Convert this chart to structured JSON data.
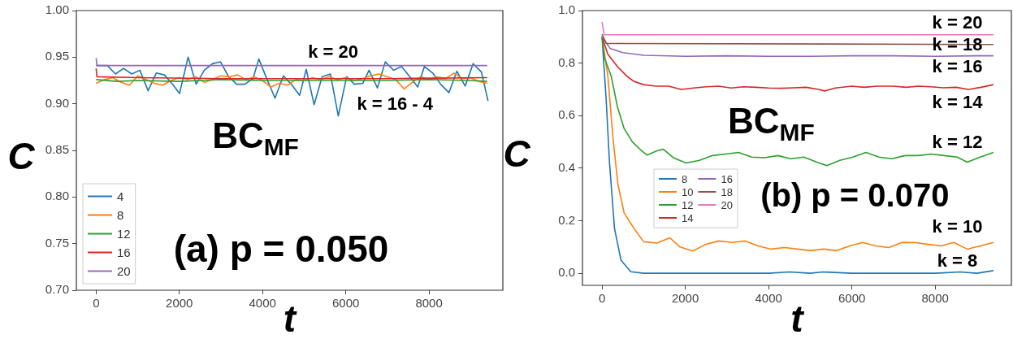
{
  "chart_data": [
    {
      "type": "line",
      "xlabel": "t",
      "ylabel": "C",
      "xlim": [
        -475,
        9775
      ],
      "xticks": [
        0,
        2000,
        4000,
        6000,
        8000
      ],
      "ylim": [
        0.7,
        1.0
      ],
      "yticks": [
        {
          "value": 0.7,
          "label": "0.70"
        },
        0.75,
        {
          "value": 0.8,
          "label": "0.80"
        },
        0.85,
        {
          "value": 0.9,
          "label": "0.90"
        },
        0.95,
        {
          "value": 1.0,
          "label": "1.00"
        }
      ],
      "grid": false,
      "legend": "bottom left",
      "annotations": [
        "k = 20",
        "k = 16 - 4",
        "BC$_{MF}$",
        "(a) p = 0.050"
      ],
      "series": [
        {
          "name": "4",
          "color": "#1f77b4",
          "x": [
            0,
            270,
            465,
            660,
            855,
            1050,
            1250,
            1445,
            1640,
            1835,
            2005,
            2210,
            2405,
            2600,
            2795,
            2990,
            3185,
            3380,
            3575,
            3770,
            3910,
            4110,
            4300,
            4500,
            4690,
            4890,
            5050,
            5240,
            5430,
            5630,
            5820,
            6020,
            6210,
            6410,
            6560,
            6760,
            6950,
            7150,
            7340,
            7540,
            7730,
            7890,
            8090,
            8280,
            8480,
            8670,
            8870,
            9060,
            9260,
            9420
          ],
          "values": [
            0.941,
            0.941,
            0.932,
            0.938,
            0.932,
            0.936,
            0.914,
            0.933,
            0.931,
            0.921,
            0.911,
            0.95,
            0.921,
            0.936,
            0.943,
            0.945,
            0.929,
            0.921,
            0.921,
            0.927,
            0.948,
            0.926,
            0.906,
            0.93,
            0.921,
            0.909,
            0.937,
            0.899,
            0.929,
            0.932,
            0.887,
            0.929,
            0.921,
            0.922,
            0.936,
            0.917,
            0.945,
            0.936,
            0.94,
            0.929,
            0.918,
            0.94,
            0.933,
            0.921,
            0.912,
            0.935,
            0.919,
            0.943,
            0.934,
            0.903
          ]
        },
        {
          "name": "8",
          "color": "#ff7f0e",
          "x": [
            0,
            200,
            400,
            600,
            800,
            1000,
            1200,
            1400,
            1600,
            1800,
            2000,
            2200,
            2400,
            2600,
            2800,
            3000,
            3200,
            3400,
            3600,
            3800,
            4000,
            4200,
            4400,
            4600,
            4800,
            5000,
            5200,
            5400,
            5600,
            5800,
            6000,
            6200,
            6400,
            6600,
            6800,
            7000,
            7200,
            7400,
            7600,
            7800,
            8000,
            8200,
            8400,
            8600,
            8800,
            9000,
            9200,
            9400
          ],
          "values": [
            0.922,
            0.926,
            0.928,
            0.923,
            0.92,
            0.93,
            0.926,
            0.922,
            0.92,
            0.925,
            0.928,
            0.926,
            0.929,
            0.923,
            0.926,
            0.93,
            0.929,
            0.931,
            0.926,
            0.929,
            0.925,
            0.918,
            0.922,
            0.92,
            0.926,
            0.925,
            0.928,
            0.926,
            0.929,
            0.926,
            0.928,
            0.925,
            0.927,
            0.93,
            0.932,
            0.929,
            0.926,
            0.916,
            0.923,
            0.929,
            0.926,
            0.929,
            0.927,
            0.933,
            0.927,
            0.928,
            0.924,
            0.922
          ]
        },
        {
          "name": "12",
          "color": "#2ca02c",
          "x": [
            0,
            500,
            1000,
            2000,
            3000,
            4000,
            5000,
            6000,
            7000,
            8000,
            9000,
            9400
          ],
          "values": [
            0.926,
            0.924,
            0.925,
            0.924,
            0.926,
            0.925,
            0.925,
            0.925,
            0.925,
            0.926,
            0.925,
            0.924
          ]
        },
        {
          "name": "16",
          "color": "#d62728",
          "x": [
            0,
            20,
            1000,
            3000,
            5000,
            7000,
            9400
          ],
          "values": [
            0.938,
            0.929,
            0.928,
            0.927,
            0.927,
            0.927,
            0.928
          ]
        },
        {
          "name": "20",
          "color": "#9467bd",
          "x": [
            0,
            20,
            9400
          ],
          "values": [
            0.949,
            0.941,
            0.941
          ]
        }
      ]
    },
    {
      "type": "line",
      "xlabel": "t",
      "ylabel": "C",
      "xlim": [
        -470,
        9830
      ],
      "xticks": [
        0,
        2000,
        4000,
        6000,
        8000
      ],
      "ylim": [
        -0.046,
        1.0
      ],
      "yticks": [
        {
          "value": 0,
          "label": "0.0"
        },
        0.2,
        0.4,
        0.6,
        0.8,
        {
          "value": 1.0,
          "label": "1.0"
        }
      ],
      "grid": false,
      "legend": "bottom left",
      "annotations": [
        "k = 20",
        "k = 18",
        "k = 16",
        "k = 14",
        "k = 12",
        "k = 10",
        "k = 8",
        "BC$_{MF}$",
        "(b) p = 0.070"
      ],
      "series": [
        {
          "name": "8",
          "color": "#1f77b4",
          "x": [
            0,
            100,
            180,
            300,
            455,
            690,
            1000,
            2000,
            3000,
            4000,
            4500,
            5000,
            5300,
            6000,
            7000,
            8000,
            8600,
            9000,
            9400
          ],
          "values": [
            0.9,
            0.66,
            0.42,
            0.17,
            0.05,
            0.006,
            0,
            0,
            0,
            0,
            0.005,
            0,
            0.005,
            0,
            0,
            0,
            0.005,
            0,
            0.01
          ]
        },
        {
          "name": "10",
          "color": "#ff7f0e",
          "x": [
            0,
            140,
            260,
            380,
            530,
            770,
            1000,
            1320,
            1630,
            1870,
            2180,
            2490,
            2810,
            3120,
            3440,
            3750,
            4060,
            4380,
            4690,
            5000,
            5320,
            5630,
            5950,
            6260,
            6570,
            6890,
            7200,
            7510,
            7830,
            8140,
            8450,
            8770,
            9080,
            9400
          ],
          "values": [
            0.9,
            0.75,
            0.52,
            0.34,
            0.23,
            0.17,
            0.12,
            0.115,
            0.135,
            0.1,
            0.085,
            0.11,
            0.123,
            0.117,
            0.123,
            0.104,
            0.092,
            0.098,
            0.092,
            0.086,
            0.092,
            0.086,
            0.104,
            0.117,
            0.104,
            0.098,
            0.117,
            0.117,
            0.11,
            0.104,
            0.117,
            0.092,
            0.104,
            0.117
          ]
        },
        {
          "name": "12",
          "color": "#2ca02c",
          "x": [
            0,
            60,
            220,
            376,
            533,
            730,
            925,
            1080,
            1320,
            1475,
            1710,
            2020,
            2340,
            2650,
            2965,
            3280,
            3590,
            3900,
            4220,
            4530,
            4850,
            5160,
            5400,
            5710,
            6020,
            6340,
            6650,
            6960,
            7280,
            7590,
            7900,
            8220,
            8530,
            8770,
            9080,
            9400
          ],
          "values": [
            0.9,
            0.82,
            0.75,
            0.63,
            0.55,
            0.5,
            0.47,
            0.45,
            0.466,
            0.472,
            0.44,
            0.42,
            0.43,
            0.448,
            0.454,
            0.46,
            0.442,
            0.44,
            0.448,
            0.436,
            0.442,
            0.423,
            0.41,
            0.43,
            0.442,
            0.46,
            0.442,
            0.436,
            0.448,
            0.448,
            0.454,
            0.448,
            0.442,
            0.423,
            0.442,
            0.46
          ]
        },
        {
          "name": "14",
          "color": "#d62728",
          "x": [
            0,
            140,
            380,
            610,
            770,
            1000,
            1300,
            1600,
            1900,
            2200,
            2500,
            2800,
            3100,
            3400,
            3700,
            4000,
            4300,
            4600,
            4900,
            5200,
            5350,
            5600,
            6000,
            6300,
            6600,
            7000,
            7300,
            7600,
            7900,
            8200,
            8500,
            8800,
            9100,
            9400
          ],
          "values": [
            0.9,
            0.834,
            0.785,
            0.748,
            0.73,
            0.718,
            0.712,
            0.712,
            0.7,
            0.705,
            0.71,
            0.712,
            0.705,
            0.71,
            0.708,
            0.705,
            0.704,
            0.706,
            0.708,
            0.7,
            0.694,
            0.705,
            0.712,
            0.708,
            0.712,
            0.712,
            0.708,
            0.712,
            0.71,
            0.706,
            0.708,
            0.7,
            0.708,
            0.718
          ]
        },
        {
          "name": "16",
          "color": "#9467bd",
          "x": [
            0,
            200,
            500,
            1000,
            2000,
            3000,
            4000,
            5000,
            6000,
            7000,
            8000,
            9000,
            9400
          ],
          "values": [
            0.9,
            0.855,
            0.84,
            0.83,
            0.826,
            0.828,
            0.826,
            0.826,
            0.828,
            0.828,
            0.826,
            0.828,
            0.828
          ]
        },
        {
          "name": "18",
          "color": "#8c564b",
          "x": [
            0,
            100,
            9400
          ],
          "values": [
            0.91,
            0.875,
            0.871
          ]
        },
        {
          "name": "20",
          "color": "#e377c2",
          "x": [
            0,
            50,
            9400
          ],
          "values": [
            0.957,
            0.908,
            0.908
          ]
        }
      ]
    }
  ]
}
